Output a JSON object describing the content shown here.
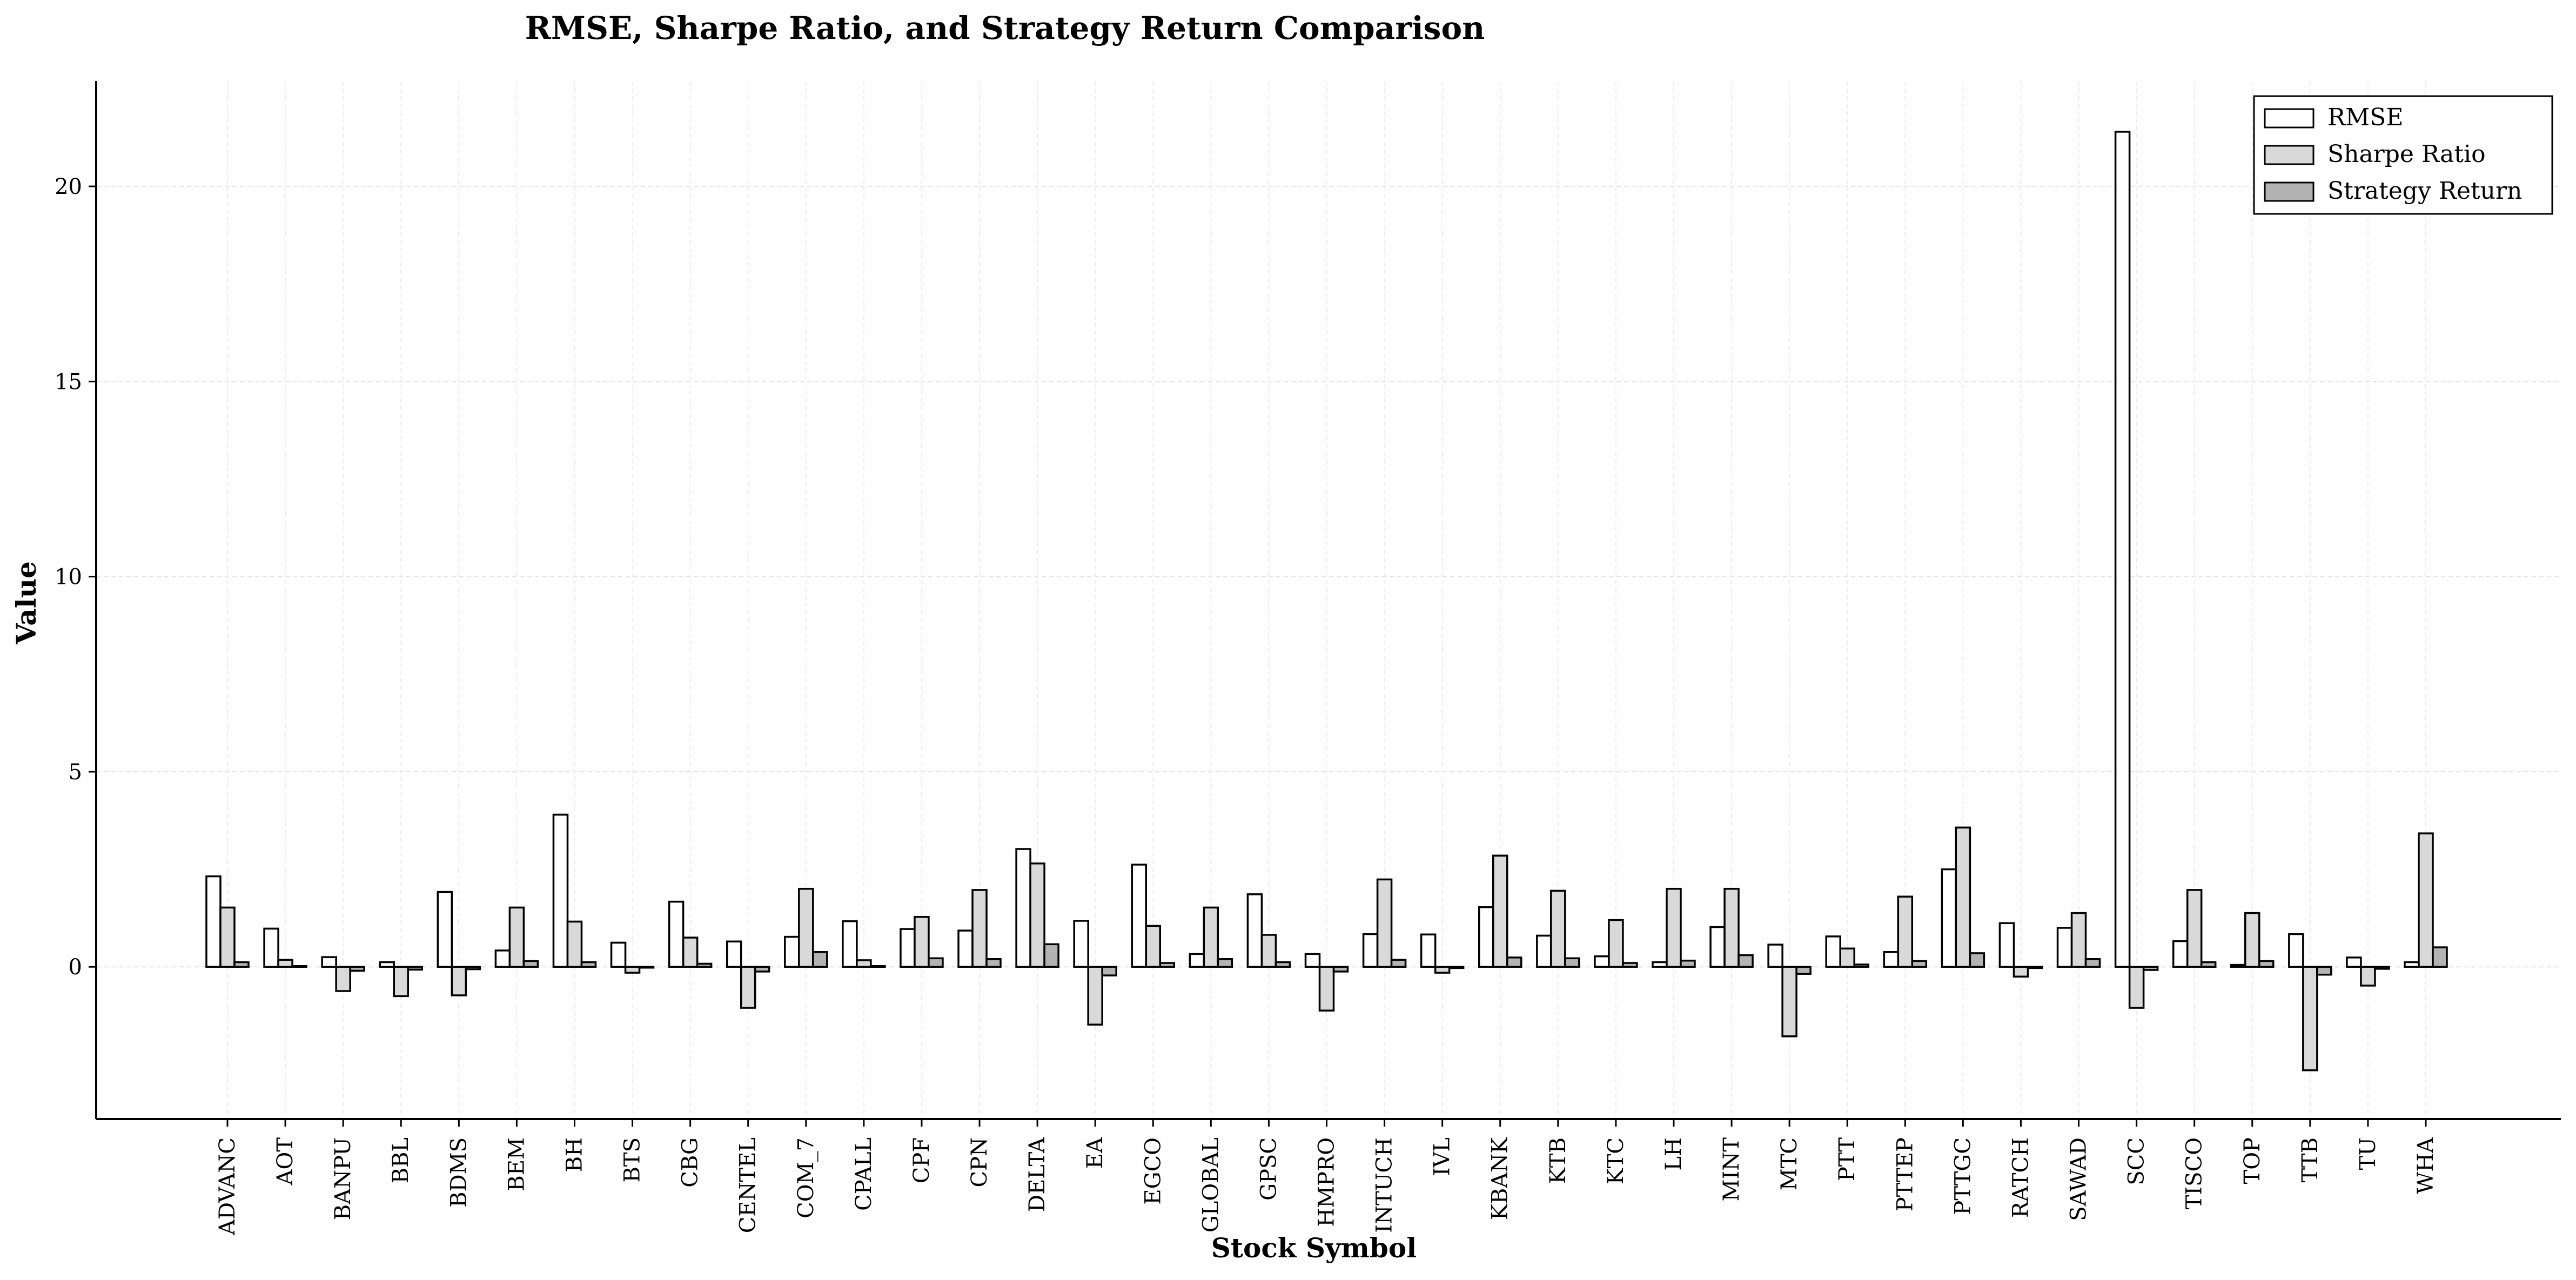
{
  "chart_data": {
    "type": "bar",
    "title": "RMSE, Sharpe Ratio, and Strategy Return Comparison",
    "xlabel": "Stock Symbol",
    "ylabel": "Value",
    "ylim": [
      -3.9,
      22.7
    ],
    "yticks": [
      0,
      5,
      10,
      15,
      20
    ],
    "grid": true,
    "legend_position": "top-right",
    "categories": [
      "ADVANC",
      "AOT",
      "BANPU",
      "BBL",
      "BDMS",
      "BEM",
      "BH",
      "BTS",
      "CBG",
      "CENTEL",
      "COM_7",
      "CPALL",
      "CPF",
      "CPN",
      "DELTA",
      "EA",
      "EGCO",
      "GLOBAL",
      "GPSC",
      "HMPRO",
      "INTUCH",
      "IVL",
      "KBANK",
      "KTB",
      "KTC",
      "LH",
      "MINT",
      "MTC",
      "PTT",
      "PTTEP",
      "PTTGC",
      "RATCH",
      "SAWAD",
      "SCC",
      "TISCO",
      "TOP",
      "TTB",
      "TU",
      "WHA"
    ],
    "series": [
      {
        "name": "RMSE",
        "color": "#ffffff",
        "values": [
          2.32,
          0.98,
          0.25,
          0.12,
          1.92,
          0.42,
          3.9,
          0.62,
          1.67,
          0.65,
          0.77,
          1.17,
          0.97,
          0.93,
          3.02,
          1.18,
          2.62,
          0.33,
          1.86,
          0.33,
          0.84,
          0.83,
          1.53,
          0.8,
          0.27,
          0.12,
          1.02,
          0.57,
          0.78,
          0.38,
          2.5,
          1.12,
          1.0,
          21.4,
          0.66,
          0.05,
          0.84,
          0.24,
          0.12
        ]
      },
      {
        "name": "Sharpe Ratio",
        "color": "#d9d9d9",
        "values": [
          1.52,
          0.18,
          -0.62,
          -0.75,
          -0.73,
          1.52,
          1.16,
          -0.15,
          0.75,
          -1.05,
          2.0,
          0.17,
          1.28,
          1.97,
          2.65,
          -1.48,
          1.05,
          1.52,
          0.82,
          -1.12,
          2.24,
          -0.15,
          2.85,
          1.95,
          1.2,
          2.0,
          2.0,
          -1.78,
          0.47,
          1.8,
          3.57,
          -0.25,
          1.38,
          -1.05,
          1.97,
          1.38,
          -2.65,
          -0.48,
          3.42
        ]
      },
      {
        "name": "Strategy Return",
        "color": "#b3b3b3",
        "values": [
          0.12,
          0.02,
          -0.1,
          -0.07,
          -0.06,
          0.15,
          0.12,
          -0.02,
          0.08,
          -0.12,
          0.38,
          0.02,
          0.22,
          0.2,
          0.58,
          -0.22,
          0.1,
          0.2,
          0.12,
          -0.12,
          0.18,
          -0.03,
          0.24,
          0.22,
          0.1,
          0.16,
          0.3,
          -0.18,
          0.06,
          0.15,
          0.35,
          -0.03,
          0.2,
          -0.08,
          0.12,
          0.15,
          -0.2,
          -0.05,
          0.5
        ]
      }
    ]
  }
}
